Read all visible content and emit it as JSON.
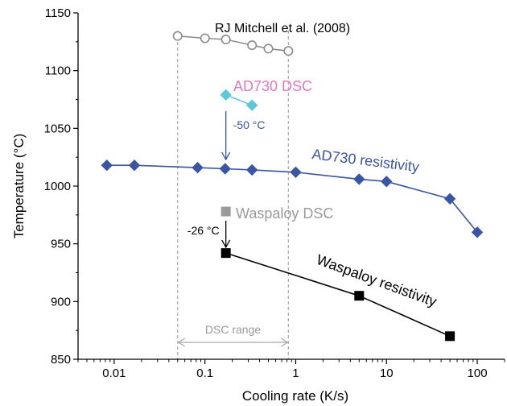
{
  "chart_data": {
    "type": "scatter",
    "xlabel": "Cooling rate (K/s)",
    "ylabel": "Temperature (°C)",
    "xscale": "log",
    "xlim": [
      0.004,
      200
    ],
    "ylim": [
      850,
      1150
    ],
    "x_ticks": [
      {
        "value": 0.01,
        "label": "0.01"
      },
      {
        "value": 0.1,
        "label": "0.1"
      },
      {
        "value": 1,
        "label": "1"
      },
      {
        "value": 10,
        "label": "10"
      },
      {
        "value": 100,
        "label": "100"
      }
    ],
    "y_ticks": [
      {
        "value": 850,
        "label": "850"
      },
      {
        "value": 900,
        "label": "900"
      },
      {
        "value": 950,
        "label": "950"
      },
      {
        "value": 1000,
        "label": "1000"
      },
      {
        "value": 1050,
        "label": "1050"
      },
      {
        "value": 1100,
        "label": "1100"
      },
      {
        "value": 1150,
        "label": "1150"
      }
    ],
    "series": [
      {
        "id": "mitchell",
        "name": "RJ Mitchell et al. (2008)",
        "marker": "circle-open",
        "color": "#8c8c8c",
        "x": [
          0.05,
          0.1,
          0.17,
          0.33,
          0.5,
          0.83
        ],
        "y": [
          1130,
          1128,
          1127,
          1122,
          1119,
          1117
        ]
      },
      {
        "id": "ad730_dsc",
        "name": "AD730 DSC",
        "marker": "diamond",
        "color": "#5fc8d8",
        "label_color": "#e07ac0",
        "x": [
          0.17,
          0.33
        ],
        "y": [
          1079,
          1070
        ]
      },
      {
        "id": "ad730_res",
        "name": "AD730 resistivity",
        "marker": "diamond",
        "color": "#3a55a4",
        "x": [
          0.0083,
          0.0167,
          0.083,
          0.167,
          0.33,
          1,
          5,
          10,
          50,
          100
        ],
        "y": [
          1018,
          1018,
          1016,
          1015,
          1014,
          1012,
          1006,
          1004,
          989,
          960
        ]
      },
      {
        "id": "wasp_dsc",
        "name": "Waspaloy DSC",
        "marker": "square",
        "color": "#9a9a9a",
        "x": [
          0.17
        ],
        "y": [
          978
        ]
      },
      {
        "id": "wasp_res",
        "name": "Waspaloy resistivity",
        "marker": "square",
        "color": "#000000",
        "x": [
          0.17,
          5,
          50
        ],
        "y": [
          942,
          905,
          870
        ]
      }
    ],
    "dsc_range": {
      "label": "DSC range",
      "x": [
        0.05,
        0.83
      ]
    },
    "annotations": [
      {
        "id": "shift_ad730",
        "text": "-50 °C",
        "x": 0.17,
        "from": 1065,
        "to": 1023,
        "color": "#3a55a4"
      },
      {
        "id": "shift_wasp",
        "text": "-26 °C",
        "x": 0.17,
        "from": 970,
        "to": 947,
        "color": "#000000"
      }
    ]
  }
}
